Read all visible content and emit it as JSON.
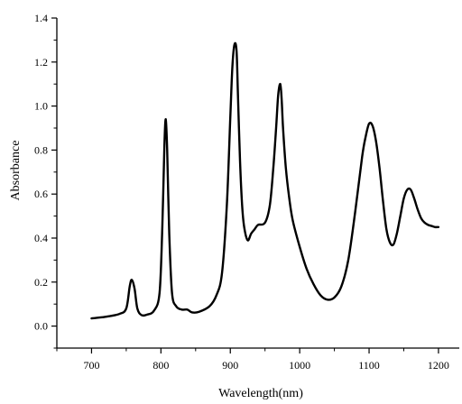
{
  "chart_data": {
    "type": "line",
    "title": "",
    "xlabel": "Wavelength(nm)",
    "ylabel": "Absorbance",
    "xlim": [
      650,
      1230
    ],
    "ylim": [
      -0.1,
      1.4
    ],
    "x_ticks": [
      700,
      800,
      900,
      1000,
      1100,
      1200
    ],
    "x_tick_labels": [
      "700",
      "800",
      "900",
      "1000",
      "1100",
      "1200"
    ],
    "y_ticks": [
      0.0,
      0.2,
      0.4,
      0.6,
      0.8,
      1.0,
      1.2,
      1.4
    ],
    "y_tick_labels": [
      "0.0",
      "0.2",
      "0.4",
      "0.6",
      "0.8",
      "1.0",
      "1.2",
      "1.4"
    ],
    "grid": false,
    "line_color": "#000000",
    "series": [
      {
        "x": [
          700,
          720,
          740,
          750,
          755,
          758,
          762,
          766,
          772,
          780,
          790,
          798,
          802,
          805,
          807,
          809,
          812,
          816,
          822,
          830,
          838,
          845,
          855,
          870,
          880,
          888,
          895,
          900,
          903,
          906,
          909,
          911,
          914,
          917,
          920,
          925,
          930,
          935,
          940,
          950,
          957,
          962,
          966,
          969,
          972,
          974,
          976,
          980,
          985,
          990,
          1000,
          1010,
          1020,
          1030,
          1040,
          1050,
          1060,
          1070,
          1080,
          1090,
          1095,
          1100,
          1105,
          1110,
          1115,
          1120,
          1125,
          1130,
          1135,
          1140,
          1145,
          1150,
          1155,
          1160,
          1165,
          1170,
          1175,
          1180,
          1185,
          1190,
          1195,
          1200
        ],
        "y": [
          0.035,
          0.042,
          0.055,
          0.08,
          0.18,
          0.21,
          0.17,
          0.08,
          0.05,
          0.052,
          0.07,
          0.15,
          0.45,
          0.82,
          0.94,
          0.8,
          0.42,
          0.15,
          0.09,
          0.075,
          0.075,
          0.062,
          0.065,
          0.09,
          0.14,
          0.24,
          0.55,
          0.95,
          1.18,
          1.28,
          1.25,
          1.05,
          0.75,
          0.55,
          0.45,
          0.39,
          0.42,
          0.44,
          0.46,
          0.47,
          0.55,
          0.72,
          0.9,
          1.05,
          1.1,
          1.03,
          0.9,
          0.72,
          0.58,
          0.48,
          0.36,
          0.26,
          0.19,
          0.14,
          0.12,
          0.13,
          0.18,
          0.3,
          0.52,
          0.77,
          0.86,
          0.92,
          0.91,
          0.84,
          0.72,
          0.57,
          0.44,
          0.38,
          0.37,
          0.42,
          0.5,
          0.58,
          0.62,
          0.62,
          0.58,
          0.53,
          0.49,
          0.47,
          0.46,
          0.455,
          0.45,
          0.45
        ]
      }
    ]
  }
}
